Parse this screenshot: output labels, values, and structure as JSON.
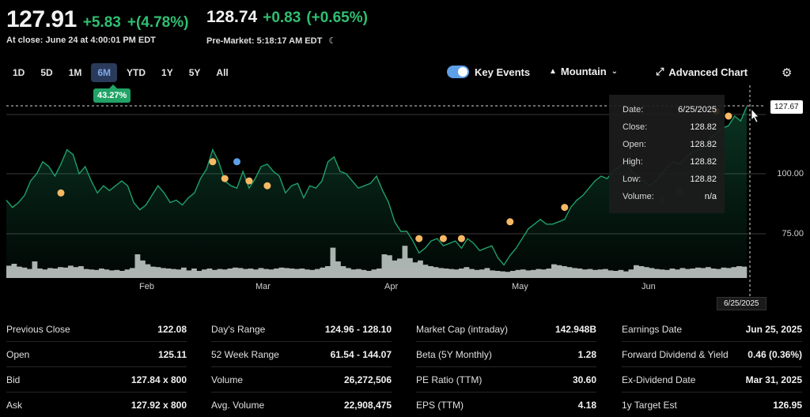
{
  "quote": {
    "price": "127.91",
    "change": "+5.83",
    "change_pct": "+(4.78%)",
    "close_label": "At close: June 24 at 4:00:01 PM EDT",
    "pre_price": "128.74",
    "pre_change": "+0.83",
    "pre_change_pct": "(+0.65%)",
    "pre_label": "Pre-Market: 5:18:17 AM EDT"
  },
  "ranges": [
    "1D",
    "5D",
    "1M",
    "6M",
    "YTD",
    "1Y",
    "5Y",
    "All"
  ],
  "active_range": "6M",
  "performance_badge": "43.27%",
  "toolbar": {
    "key_events": "Key Events",
    "mountain": "Mountain",
    "advanced_chart": "Advanced Chart"
  },
  "tooltip": {
    "rows": [
      {
        "label": "Date:",
        "value": "6/25/2025"
      },
      {
        "label": "Close:",
        "value": "128.82"
      },
      {
        "label": "Open:",
        "value": "128.82"
      },
      {
        "label": "High:",
        "value": "128.82"
      },
      {
        "label": "Low:",
        "value": "128.82"
      },
      {
        "label": "Volume:",
        "value": "n/a"
      }
    ]
  },
  "crosshair": {
    "price": "127.67",
    "date": "6/25/2025"
  },
  "chart_data": {
    "type": "area",
    "y_ticks": [
      "100.00",
      "75.00"
    ],
    "x_ticks": [
      "Feb",
      "Mar",
      "Apr",
      "May",
      "Jun"
    ],
    "ylim": [
      50,
      135
    ],
    "prices": [
      89,
      86,
      88,
      91,
      97,
      100,
      105,
      103,
      99,
      104,
      110,
      108,
      100,
      103,
      97,
      92,
      95,
      93,
      95,
      97,
      95,
      88,
      85,
      87,
      91,
      95,
      92,
      88,
      89,
      87,
      90,
      92,
      98,
      102,
      110,
      105,
      97,
      95,
      94,
      101,
      94,
      98,
      103,
      104,
      101,
      99,
      92,
      95,
      96,
      90,
      95,
      94,
      97,
      105,
      107,
      101,
      100,
      97,
      94,
      95,
      96,
      99,
      93,
      88,
      80,
      76,
      76,
      72,
      67,
      69,
      72,
      73,
      70,
      71,
      72,
      69,
      73,
      71,
      68,
      69,
      70,
      65,
      62,
      66,
      69,
      73,
      77,
      79,
      81,
      79,
      79,
      80,
      81,
      86,
      89,
      91,
      94,
      97,
      99,
      98,
      101,
      103,
      105,
      101,
      99,
      97,
      95,
      97,
      100,
      103,
      105,
      104,
      107,
      109,
      110,
      111,
      115,
      117,
      119,
      120,
      124,
      122,
      128
    ],
    "volumes": [
      0.52,
      0.6,
      0.48,
      0.44,
      0.38,
      0.7,
      0.4,
      0.36,
      0.42,
      0.4,
      0.46,
      0.44,
      0.52,
      0.46,
      0.5,
      0.38,
      0.36,
      0.34,
      0.4,
      0.36,
      0.32,
      0.34,
      0.3,
      0.36,
      0.42,
      1.0,
      0.74,
      0.58,
      0.48,
      0.46,
      0.42,
      0.4,
      0.38,
      0.36,
      0.44,
      0.32,
      0.4,
      0.3,
      0.36,
      0.4,
      0.34,
      0.38,
      0.36,
      0.4,
      0.44,
      0.42,
      0.38,
      0.4,
      0.36,
      0.42,
      0.38,
      0.36,
      0.4,
      0.44,
      0.42,
      0.4,
      0.38,
      0.4,
      0.36,
      0.34,
      0.38,
      0.44,
      0.5,
      1.28,
      0.7,
      0.5,
      0.42,
      0.36,
      0.38,
      0.34,
      0.3,
      0.36,
      0.4,
      1.0,
      0.96,
      0.74,
      0.82,
      1.36,
      0.84,
      0.66,
      0.74,
      0.56,
      0.5,
      0.46,
      0.42,
      0.4,
      0.38,
      0.36,
      0.4,
      0.46,
      0.38,
      0.34,
      0.36,
      0.42,
      0.32,
      0.3,
      0.28,
      0.26,
      0.3,
      0.34,
      0.36,
      0.32,
      0.34,
      0.38,
      0.36,
      0.4,
      0.58,
      0.54,
      0.5,
      0.46,
      0.42,
      0.4,
      0.36,
      0.38,
      0.34,
      0.36,
      0.38,
      0.32,
      0.3,
      0.34,
      0.28,
      0.36,
      0.54,
      0.5,
      0.46,
      0.42,
      0.38,
      0.36,
      0.34,
      0.4,
      0.36,
      0.42,
      0.38,
      0.4,
      0.44,
      0.42,
      0.46,
      0.4,
      0.38,
      0.44,
      0.42,
      0.46,
      0.5,
      0.48
    ],
    "events_orange": [
      [
        9,
        92
      ],
      [
        34,
        105
      ],
      [
        36,
        98
      ],
      [
        40,
        97
      ],
      [
        43,
        95
      ],
      [
        68,
        73
      ],
      [
        72,
        73
      ],
      [
        75,
        73
      ],
      [
        83,
        80
      ],
      [
        92,
        86
      ],
      [
        117,
        126
      ],
      [
        119,
        124
      ]
    ],
    "events_blue": [
      [
        38,
        105
      ]
    ],
    "events_dark": [
      [
        108,
        89
      ],
      [
        111,
        93
      ]
    ]
  },
  "stats": {
    "col1": [
      {
        "label": "Previous Close",
        "value": "122.08"
      },
      {
        "label": "Open",
        "value": "125.11"
      },
      {
        "label": "Bid",
        "value": "127.84 x 800"
      },
      {
        "label": "Ask",
        "value": "127.92 x 800"
      }
    ],
    "col2": [
      {
        "label": "Day's Range",
        "value": "124.96 - 128.10"
      },
      {
        "label": "52 Week Range",
        "value": "61.54 - 144.07"
      },
      {
        "label": "Volume",
        "value": "26,272,506"
      },
      {
        "label": "Avg. Volume",
        "value": "22,908,475"
      }
    ],
    "col3": [
      {
        "label": "Market Cap (intraday)",
        "value": "142.948B"
      },
      {
        "label": "Beta (5Y Monthly)",
        "value": "1.28"
      },
      {
        "label": "PE Ratio (TTM)",
        "value": "30.60"
      },
      {
        "label": "EPS (TTM)",
        "value": "4.18"
      }
    ],
    "col4": [
      {
        "label": "Earnings Date",
        "value": "Jun 25, 2025"
      },
      {
        "label": "Forward Dividend & Yield",
        "value": "0.46 (0.36%)"
      },
      {
        "label": "Ex-Dividend Date",
        "value": "Mar 31, 2025"
      },
      {
        "label": "1y Target Est",
        "value": "126.95"
      }
    ]
  },
  "colors": {
    "up": "#2fbf71",
    "line": "#1fa06a",
    "event": "#f5b964",
    "event_blue": "#5ea0e8",
    "volume": "#b5b5b5"
  }
}
